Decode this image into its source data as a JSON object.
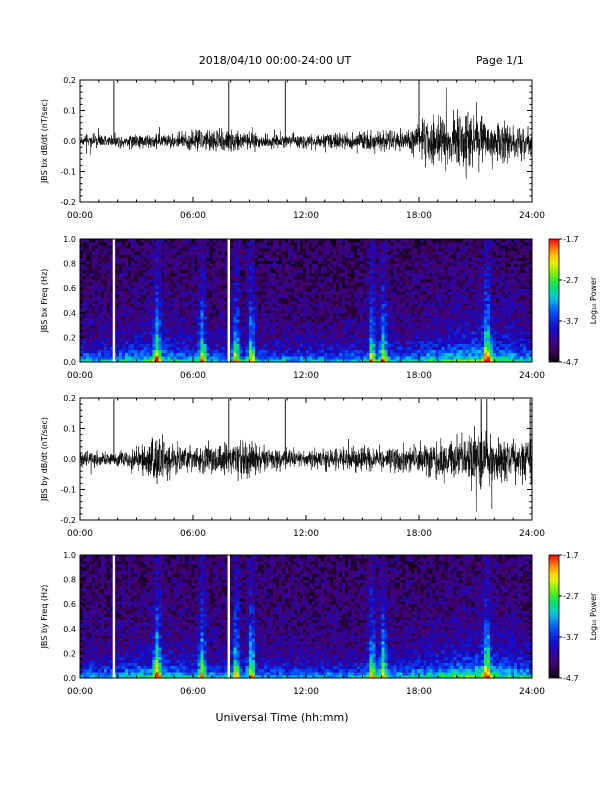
{
  "header": {
    "title": "2018/04/10   00:00-24:00 UT",
    "page": "Page 1/1"
  },
  "xlabel": "Universal Time (hh:mm)",
  "chart_data": [
    {
      "type": "line",
      "ylabel": "JBS bx dB/dt (nT/sec)",
      "xlim": [
        0,
        24
      ],
      "ylim": [
        -0.2,
        0.2
      ],
      "xticks": [
        "00:00",
        "06:00",
        "12:00",
        "18:00",
        "24:00"
      ],
      "yticks": [
        "0.2",
        "0.1",
        "0.0",
        "-0.1",
        "-0.2"
      ],
      "spikes": [
        1.8,
        7.9,
        10.9,
        18.0
      ],
      "amplitude_envelope": [
        [
          0,
          0.015
        ],
        [
          2,
          0.018
        ],
        [
          3,
          0.02
        ],
        [
          4,
          0.022
        ],
        [
          5,
          0.018
        ],
        [
          6,
          0.03
        ],
        [
          8,
          0.035
        ],
        [
          9,
          0.03
        ],
        [
          10,
          0.02
        ],
        [
          12,
          0.02
        ],
        [
          14,
          0.025
        ],
        [
          15,
          0.03
        ],
        [
          16,
          0.03
        ],
        [
          17,
          0.03
        ],
        [
          17.8,
          0.04
        ],
        [
          18.5,
          0.07
        ],
        [
          20,
          0.08
        ],
        [
          20.5,
          0.1
        ],
        [
          21,
          0.07
        ],
        [
          22,
          0.06
        ],
        [
          23,
          0.05
        ],
        [
          24,
          0.04
        ]
      ]
    },
    {
      "type": "heatmap",
      "ylabel": "JBS bx Freq (Hz)",
      "xlim": [
        0,
        24
      ],
      "ylim": [
        0,
        1
      ],
      "xticks": [
        "00:00",
        "06:00",
        "12:00",
        "18:00",
        "24:00"
      ],
      "yticks": [
        "1.0",
        "0.8",
        "0.6",
        "0.4",
        "0.2",
        "0.0"
      ],
      "gaps": [
        1.8,
        7.9
      ],
      "bright_bands": [
        4.1,
        6.5,
        8.3,
        9.1,
        15.5,
        16.1,
        21.6
      ],
      "colorbar": {
        "label": "Log₁₀ Power",
        "ticks": [
          "-1.7",
          "-2.7",
          "-3.7",
          "-4.7"
        ],
        "range": [
          -4.7,
          -1.7
        ]
      }
    },
    {
      "type": "line",
      "ylabel": "JBS by dB/dt (nT/sec)",
      "xlim": [
        0,
        24
      ],
      "ylim": [
        -0.2,
        0.2
      ],
      "xticks": [
        "00:00",
        "06:00",
        "12:00",
        "18:00",
        "24:00"
      ],
      "yticks": [
        "0.2",
        "0.1",
        "0.0",
        "-0.1",
        "-0.2"
      ],
      "spikes": [
        1.8,
        7.9,
        10.9,
        21.3,
        21.6,
        23.9
      ],
      "amplitude_envelope": [
        [
          0,
          0.02
        ],
        [
          2,
          0.02
        ],
        [
          3.5,
          0.04
        ],
        [
          4.2,
          0.08
        ],
        [
          5,
          0.04
        ],
        [
          6,
          0.03
        ],
        [
          8,
          0.05
        ],
        [
          9,
          0.05
        ],
        [
          10,
          0.03
        ],
        [
          12,
          0.025
        ],
        [
          14,
          0.03
        ],
        [
          16,
          0.035
        ],
        [
          17.5,
          0.04
        ],
        [
          18.5,
          0.05
        ],
        [
          20,
          0.06
        ],
        [
          21,
          0.08
        ],
        [
          22,
          0.07
        ],
        [
          23,
          0.06
        ],
        [
          24,
          0.06
        ]
      ]
    },
    {
      "type": "heatmap",
      "ylabel": "JBS by Freq (Hz)",
      "xlim": [
        0,
        24
      ],
      "ylim": [
        0,
        1
      ],
      "xticks": [
        "00:00",
        "06:00",
        "12:00",
        "18:00",
        "24:00"
      ],
      "yticks": [
        "1.0",
        "0.8",
        "0.6",
        "0.4",
        "0.2",
        "0.0"
      ],
      "gaps": [
        1.8,
        7.9
      ],
      "bright_bands": [
        4.1,
        6.5,
        8.3,
        9.1,
        15.5,
        16.1,
        21.6
      ],
      "colorbar": {
        "label": "Log₁₀ Power",
        "ticks": [
          "-1.7",
          "-2.7",
          "-3.7",
          "-4.7"
        ],
        "range": [
          -4.7,
          -1.7
        ]
      }
    }
  ]
}
